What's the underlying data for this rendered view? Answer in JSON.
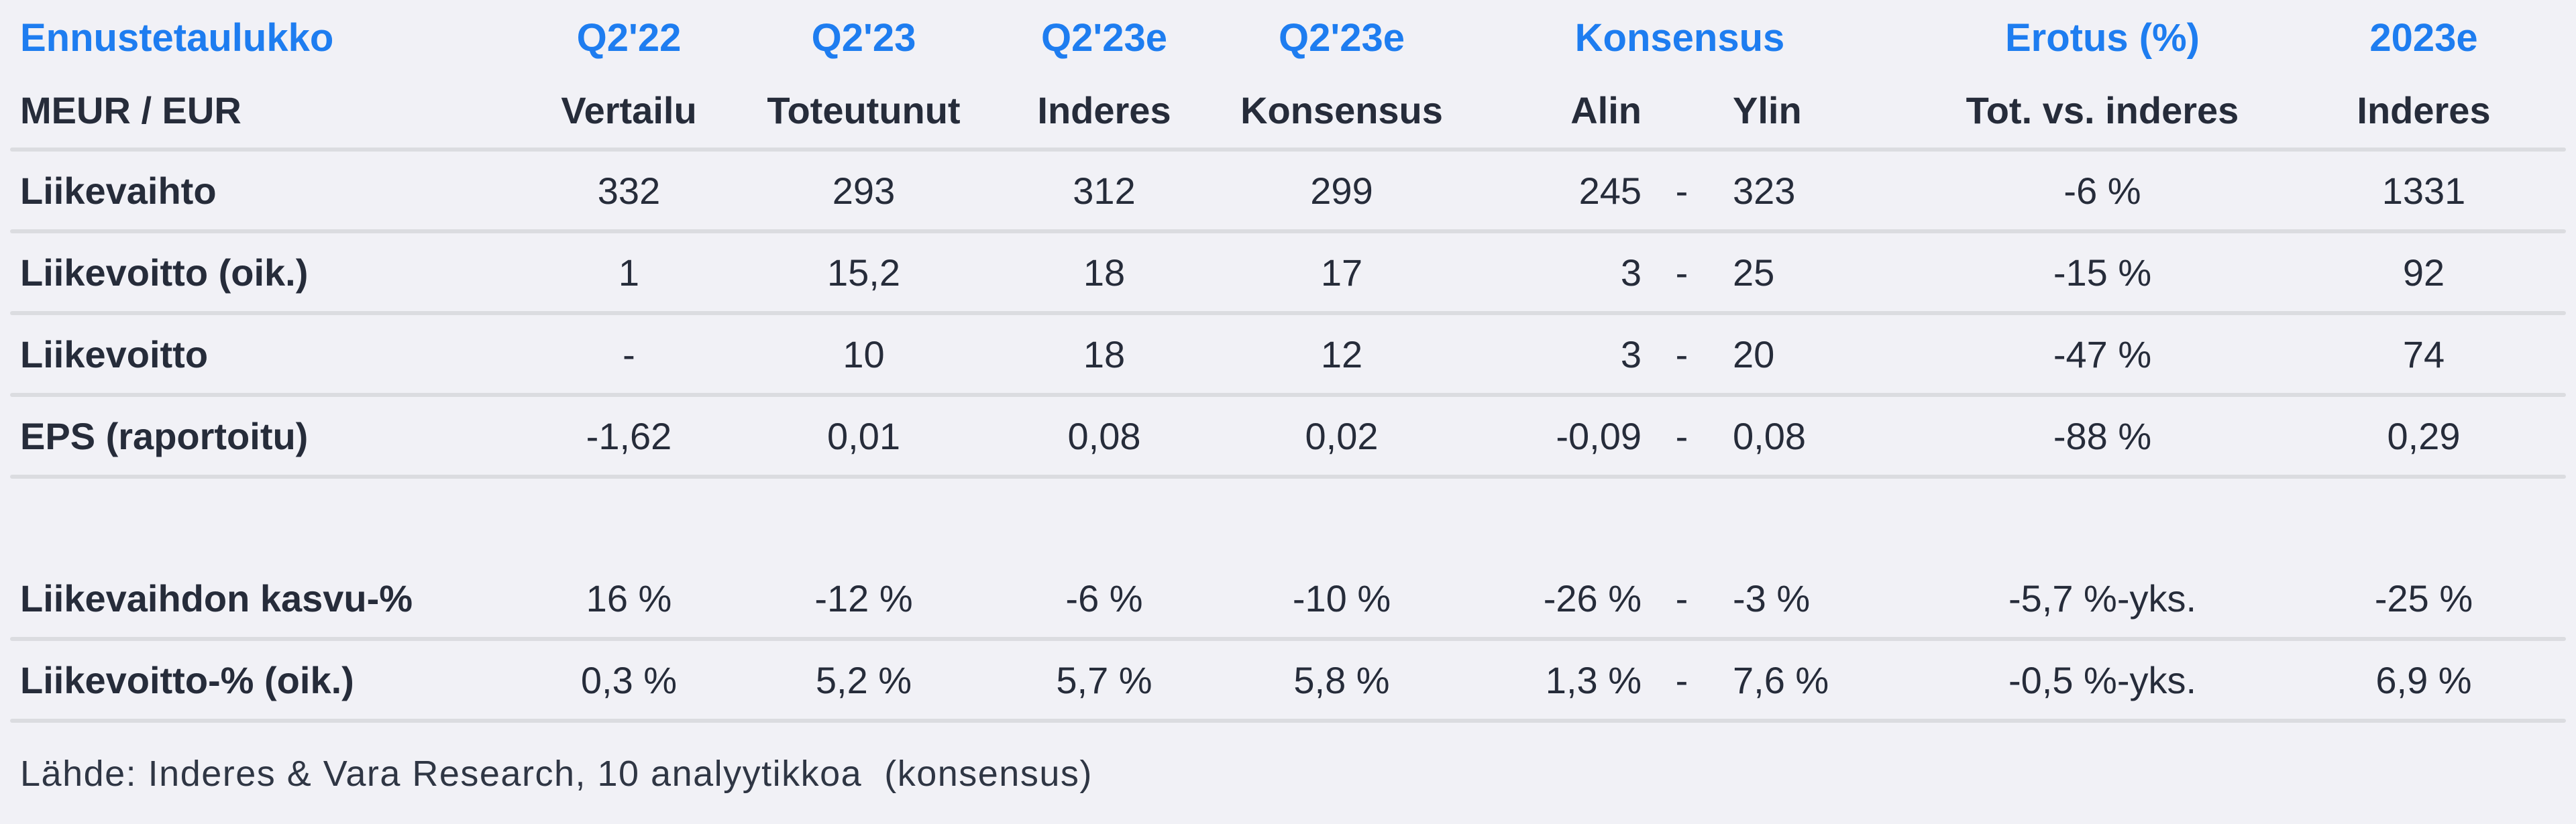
{
  "colors": {
    "background": "#F1F1F6",
    "accent_blue": "#1E7DF0",
    "text_dark": "#262C3A",
    "separator": "#DBDCE0",
    "footer_text": "#2F3644"
  },
  "chart_data": {
    "type": "table",
    "title": "Ennustetaulukko",
    "units_label": "MEUR / EUR",
    "header_top": [
      "Q2'22",
      "Q2'23",
      "Q2'23e",
      "Q2'23e",
      "Konsensus",
      "Erotus (%)",
      "2023e"
    ],
    "header_sub": [
      "Vertailu",
      "Toteutunut",
      "Inderes",
      "Konsensus",
      "Alin",
      "Ylin",
      "Tot. vs. inderes",
      "Inderes"
    ],
    "range_separator": "-",
    "rows": [
      {
        "label": "Liikevaihto",
        "vertailu": "332",
        "toteutunut": "293",
        "inderes": "312",
        "konsensus": "299",
        "alin": "245",
        "ylin": "323",
        "erotus": "-6 %",
        "y2023e": "1331"
      },
      {
        "label": "Liikevoitto (oik.)",
        "vertailu": "1",
        "toteutunut": "15,2",
        "inderes": "18",
        "konsensus": "17",
        "alin": "3",
        "ylin": "25",
        "erotus": "-15 %",
        "y2023e": "92"
      },
      {
        "label": "Liikevoitto",
        "vertailu": "-",
        "toteutunut": "10",
        "inderes": "18",
        "konsensus": "12",
        "alin": "3",
        "ylin": "20",
        "erotus": "-47 %",
        "y2023e": "74"
      },
      {
        "label": "EPS (raportoitu)",
        "vertailu": "-1,62",
        "toteutunut": "0,01",
        "inderes": "0,08",
        "konsensus": "0,02",
        "alin": "-0,09",
        "ylin": "0,08",
        "erotus": "-88 %",
        "y2023e": "0,29"
      },
      {
        "label": "Liikevaihdon kasvu-%",
        "vertailu": "16 %",
        "toteutunut": "-12 %",
        "inderes": "-6 %",
        "konsensus": "-10 %",
        "alin": "-26 %",
        "ylin": "-3 %",
        "erotus": "-5,7 %-yks.",
        "y2023e": "-25 %"
      },
      {
        "label": "Liikevoitto-% (oik.)",
        "vertailu": "0,3 %",
        "toteutunut": "5,2 %",
        "inderes": "5,7 %",
        "konsensus": "5,8 %",
        "alin": "1,3 %",
        "ylin": "7,6 %",
        "erotus": "-0,5 %-yks.",
        "y2023e": "6,9 %"
      }
    ],
    "source": "Lähde: Inderes & Vara Research, 10 analyytikkoa  (konsensus)"
  }
}
